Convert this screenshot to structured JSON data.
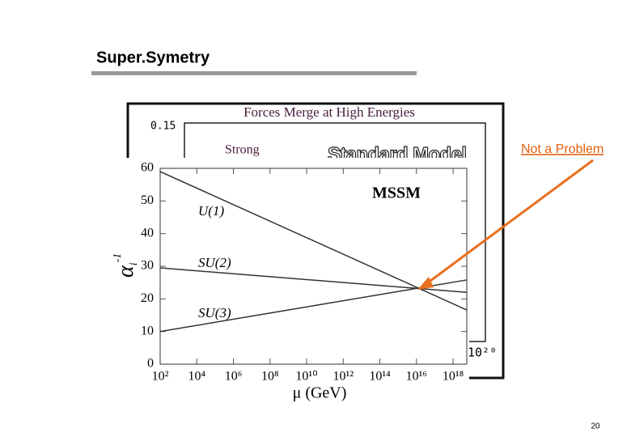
{
  "slide_title": "Super.Symetry",
  "annotation": "Not a Problem",
  "page_number": "20",
  "background_chart": {
    "title": "Forces Merge at High Energies",
    "tick_top": "0.15",
    "label_strong": "Strong",
    "label_model": "Standard Model",
    "tick_right": "10²⁰"
  },
  "chart_data": {
    "type": "line",
    "xscale": "log",
    "annotations": [
      "MSSM"
    ],
    "xlabel": "μ  (GeV)",
    "ylabel": {
      "symbol": "α",
      "subscript": "i",
      "superscript": "-1"
    },
    "x": [
      100,
      5.6e+18
    ],
    "xlim": [
      100,
      5.6e+18
    ],
    "xticks": [
      {
        "value": 100,
        "label": "10²"
      },
      {
        "value": 10000,
        "label": "10⁴"
      },
      {
        "value": 1000000,
        "label": "10⁶"
      },
      {
        "value": 100000000,
        "label": "10⁸"
      },
      {
        "value": 10000000000.0,
        "label": "10¹⁰"
      },
      {
        "value": 1000000000000.0,
        "label": "10¹²"
      },
      {
        "value": 100000000000000.0,
        "label": "10¹⁴"
      },
      {
        "value": 1e+16,
        "label": "10¹⁶"
      },
      {
        "value": 1e+18,
        "label": "10¹⁸"
      }
    ],
    "ylim": [
      0,
      60
    ],
    "yticks": [
      0,
      10,
      20,
      30,
      40,
      50,
      60
    ],
    "series": [
      {
        "name": "U(1)",
        "color": "#333333",
        "values": [
          59,
          16.6
        ]
      },
      {
        "name": "SU(2)",
        "color": "#333333",
        "values": [
          29.5,
          22
        ]
      },
      {
        "name": "SU(3)",
        "color": "#333333",
        "values": [
          10,
          25.8
        ]
      }
    ]
  }
}
